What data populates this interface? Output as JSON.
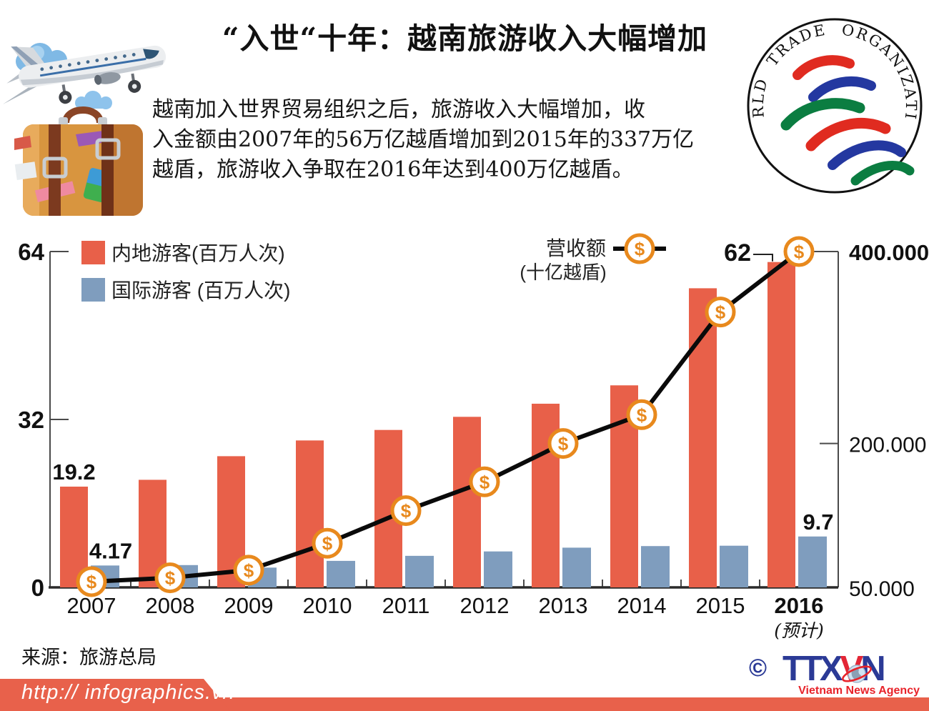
{
  "header": {
    "title": "“入世“十年：越南旅游收入大幅增加",
    "intro_lines": [
      "越南加入世界贸易组织之后，旅游收入大幅增加，收",
      "入金额由2007年的56万亿越盾增加到2015年的337万亿",
      "越盾，旅游收入争取在2016年达到400万亿越盾。"
    ],
    "wto_text": "WORLD TRADE ORGANIZATION"
  },
  "legend": {
    "domestic": "内地游客(百万人次)",
    "international": "国际游客 (百万人次)",
    "revenue": "营收额",
    "revenue_unit": "(十亿越盾)"
  },
  "chart_data": {
    "type": "bar",
    "subtype": "bar+line combo, dual axis",
    "categories": [
      "2007",
      "2008",
      "2009",
      "2010",
      "2011",
      "2012",
      "2013",
      "2014",
      "2015",
      "2016"
    ],
    "x_note": {
      "category": "2016",
      "text": "(预计)"
    },
    "series": [
      {
        "key": "domestic",
        "name": "内地游客(百万人次)",
        "type": "bar",
        "axis": "left",
        "color": "#e86049",
        "values": [
          19.2,
          20.5,
          25,
          28,
          30,
          32.5,
          35,
          38.5,
          57,
          62
        ]
      },
      {
        "key": "international",
        "name": "国际游客 (百万人次)",
        "type": "bar",
        "axis": "left",
        "color": "#7f9dbe",
        "values": [
          4.17,
          4.25,
          3.77,
          5.05,
          6.01,
          6.85,
          7.57,
          7.87,
          7.94,
          9.7
        ]
      },
      {
        "key": "revenue",
        "name": "营收额 (十亿越盾)",
        "type": "line",
        "axis": "right",
        "color": "#0a0a0a",
        "marker": "dollar-coin",
        "values": [
          56000,
          60000,
          68000,
          96000,
          130000,
          160000,
          200000,
          230000,
          337000,
          400000
        ]
      }
    ],
    "left_axis": {
      "range": [
        0,
        64
      ],
      "ticks": [
        {
          "value": 0,
          "label": "0"
        },
        {
          "value": 32,
          "label": "32"
        },
        {
          "value": 64,
          "label": "64"
        }
      ]
    },
    "right_axis": {
      "range": [
        50000,
        400000
      ],
      "ticks": [
        {
          "value": 50000,
          "label": "50.000",
          "bold": false
        },
        {
          "value": 200000,
          "label": "200.000",
          "bold": false
        },
        {
          "value": 400000,
          "label": "400.000",
          "bold": true
        }
      ]
    },
    "data_labels": [
      {
        "series": "domestic",
        "index": 0,
        "text": "19.2"
      },
      {
        "series": "international",
        "index": 0,
        "text": "4.17"
      },
      {
        "series": "domestic",
        "index": 9,
        "text": "62"
      },
      {
        "series": "international",
        "index": 9,
        "text": "9.7"
      }
    ],
    "grid": false,
    "legend_position": "top"
  },
  "source": "来源：旅游总局",
  "footer": {
    "url": "http:// infographics.vn"
  },
  "ttxvn": {
    "copyright": "©",
    "letters_1": "TTX",
    "letter_v": "V",
    "letter_n": "N",
    "subtitle": "Vietnam News Agency"
  },
  "colors": {
    "bar_domestic": "#e86049",
    "bar_international": "#7f9dbe",
    "revenue_line": "#0a0a0a",
    "coin_ring": "#e8891d",
    "footer_bar": "#e8614b",
    "ttxvn_blue": "#2b3a96",
    "ttxvn_red": "#e8232a",
    "wto_red": "#e02b20",
    "wto_blue": "#2438a0",
    "wto_green": "#0b7d41"
  }
}
